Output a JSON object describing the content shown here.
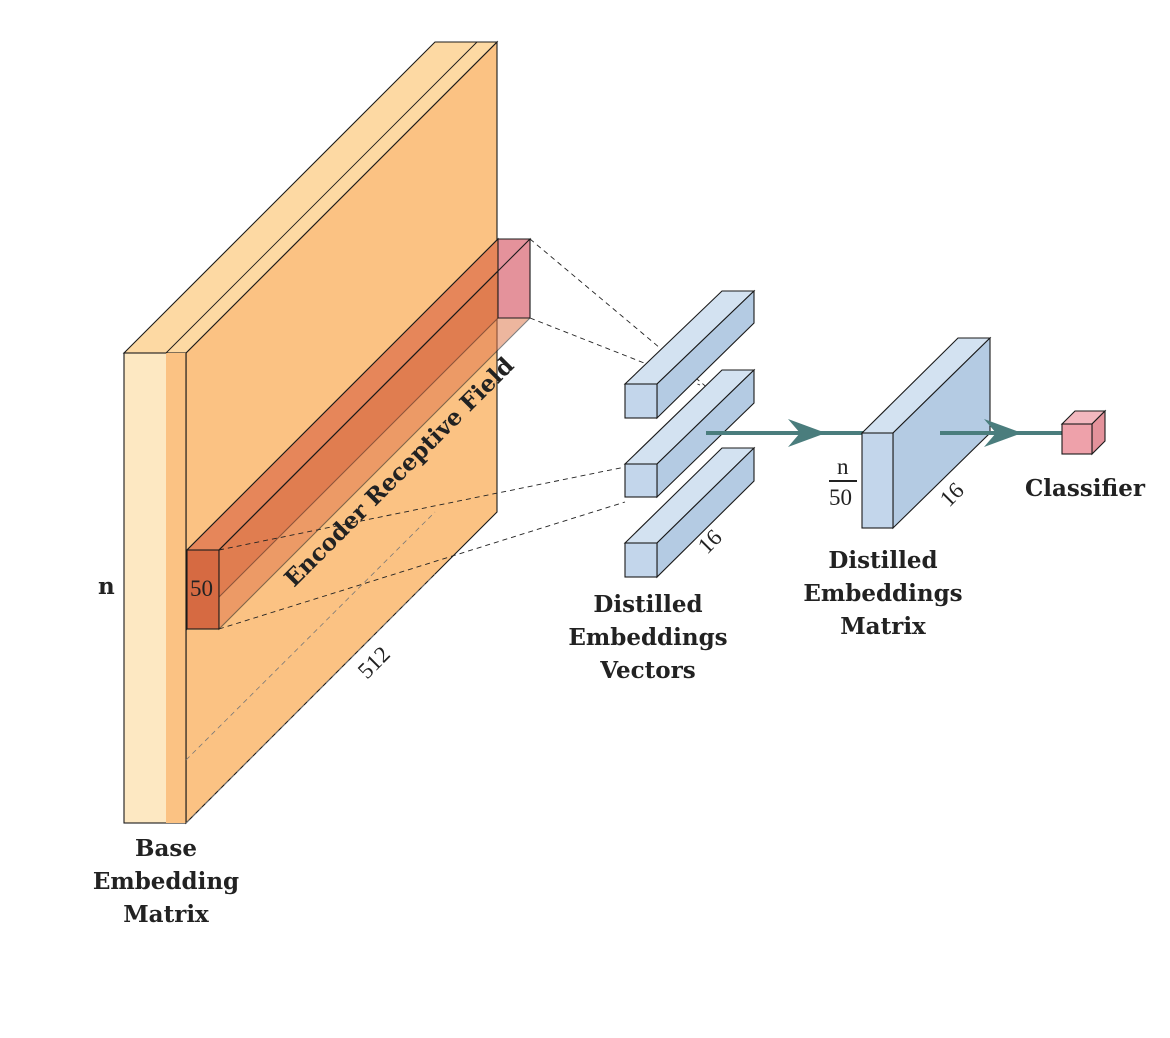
{
  "diagram": {
    "base_matrix": {
      "label_lines": [
        "Base",
        "Embedding",
        "Matrix"
      ],
      "height_label": "n",
      "depth_label": "512",
      "color_front": "#fde8c2",
      "color_side": "#fbc283",
      "color_top": "#fdd9a3"
    },
    "receptive_field": {
      "label": "Encoder Receptive Field",
      "size_label": "50",
      "color_front": "#e07b4f",
      "color_face": "#e4929b"
    },
    "distilled_vectors": {
      "label_lines": [
        "Distilled",
        "Embeddings",
        "Vectors"
      ],
      "depth_label": "16",
      "count": 3,
      "color": "#c3d6eb"
    },
    "distilled_matrix": {
      "label_lines": [
        "Distilled",
        "Embeddings",
        "Matrix"
      ],
      "height_numerator": "n",
      "height_denominator": "50",
      "depth_label": "16",
      "color": "#c3d6eb"
    },
    "classifier": {
      "label": "Classifier",
      "color": "#eea1aa"
    },
    "arrow_color": "#4a7d7d"
  }
}
